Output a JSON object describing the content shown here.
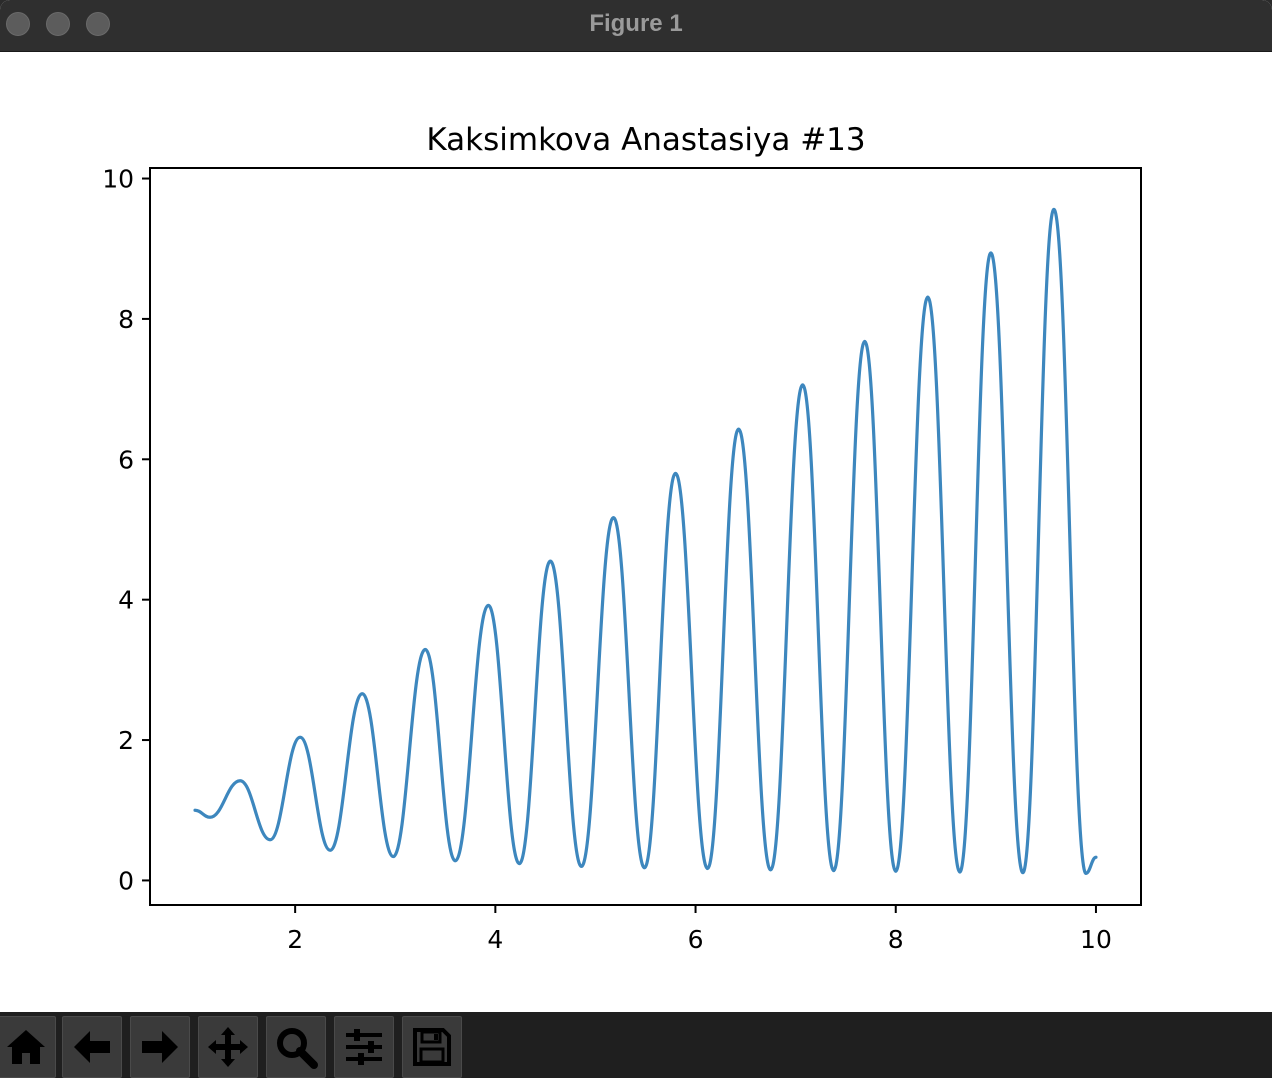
{
  "window": {
    "title": "Figure 1"
  },
  "toolbar": {
    "buttons": [
      {
        "name": "home-button",
        "icon": "home-icon"
      },
      {
        "name": "back-button",
        "icon": "arrow-left-icon"
      },
      {
        "name": "forward-button",
        "icon": "arrow-right-icon"
      },
      {
        "name": "pan-button",
        "icon": "move-icon"
      },
      {
        "name": "zoom-button",
        "icon": "magnifier-icon"
      },
      {
        "name": "configure-subplots-button",
        "icon": "sliders-icon"
      },
      {
        "name": "save-button",
        "icon": "floppy-disk-icon"
      }
    ]
  },
  "chart_data": {
    "type": "line",
    "title": "Kaksimkova Anastasiya #13",
    "xlabel": "",
    "ylabel": "",
    "xlim": [
      0.55,
      10.45
    ],
    "ylim": [
      -0.35,
      10.15
    ],
    "xticks": [
      2,
      4,
      6,
      8,
      10
    ],
    "xtick_labels": [
      "2",
      "4",
      "6",
      "8",
      "10"
    ],
    "yticks": [
      0,
      2,
      4,
      6,
      8,
      10
    ],
    "ytick_labels": [
      "0",
      "2",
      "4",
      "6",
      "8",
      "10"
    ],
    "grid": false,
    "line_color": "#3d87be",
    "series": [
      {
        "x": [
          1.0,
          1.15,
          1.45,
          1.75,
          2.05,
          2.35,
          2.67,
          2.98,
          3.3,
          3.6,
          3.93,
          4.24,
          4.55,
          4.86,
          5.18,
          5.49,
          5.8,
          6.12,
          6.43,
          6.75,
          7.07,
          7.38,
          7.69,
          8.0,
          8.32,
          8.64,
          8.95,
          9.27,
          9.58,
          9.9,
          10.0
        ],
        "y": [
          1.0,
          0.9,
          1.42,
          0.58,
          2.04,
          0.43,
          2.66,
          0.34,
          3.29,
          0.28,
          3.92,
          0.24,
          4.55,
          0.2,
          5.17,
          0.18,
          5.8,
          0.17,
          6.43,
          0.15,
          7.06,
          0.14,
          7.68,
          0.13,
          8.31,
          0.12,
          8.94,
          0.11,
          9.56,
          0.1,
          0.33
        ]
      }
    ]
  }
}
